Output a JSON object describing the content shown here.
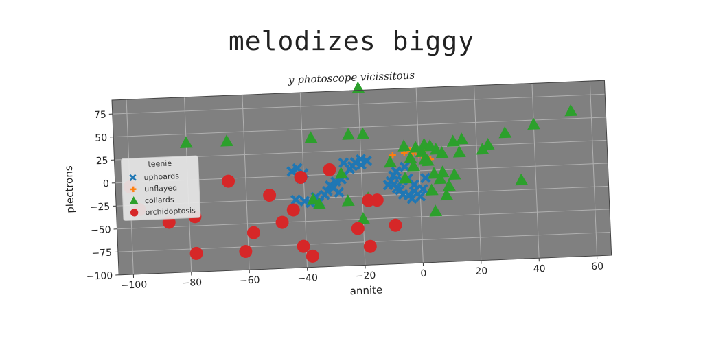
{
  "title": "melodizes biggy",
  "subtitle": "y photoscope vicissitous",
  "chart_data": {
    "type": "scatter",
    "xlabel": "annite",
    "ylabel": "plectrons",
    "xlim": [
      -105,
      65
    ],
    "ylim": [
      -100,
      90
    ],
    "xticks": [
      -100,
      -80,
      -60,
      -40,
      -20,
      0,
      20,
      40,
      60
    ],
    "yticks": [
      -100,
      -75,
      -50,
      -25,
      0,
      25,
      50,
      75
    ],
    "grid": true,
    "legend": {
      "title": "teenie",
      "position": "center-left"
    },
    "background_color": "#808080",
    "series": [
      {
        "name": "uphoards",
        "marker": "X",
        "color": "#1f77b4",
        "points": [
          [
            -44,
            5
          ],
          [
            -42,
            8
          ],
          [
            -40,
            2
          ],
          [
            -41,
            -3
          ],
          [
            -43,
            -26
          ],
          [
            -40,
            -28
          ],
          [
            -38,
            -30
          ],
          [
            -36,
            -24
          ],
          [
            -35,
            -30
          ],
          [
            -33,
            -22
          ],
          [
            -32,
            -18
          ],
          [
            -31,
            -12
          ],
          [
            -30,
            -15
          ],
          [
            -29,
            -8
          ],
          [
            -27,
            -6
          ],
          [
            -28,
            -20
          ],
          [
            -26,
            -2
          ],
          [
            -24,
            5
          ],
          [
            -23,
            8
          ],
          [
            -22,
            12
          ],
          [
            -20,
            15
          ],
          [
            -18,
            13
          ],
          [
            -20,
            9
          ],
          [
            -26,
            12
          ],
          [
            -10,
            -10
          ],
          [
            -9,
            -14
          ],
          [
            -8,
            -18
          ],
          [
            -7,
            -20
          ],
          [
            -6,
            -10
          ],
          [
            -6,
            -25
          ],
          [
            -4,
            -26
          ],
          [
            -3,
            -30
          ],
          [
            -2,
            -22
          ],
          [
            0,
            -28
          ],
          [
            1,
            -20
          ],
          [
            -2,
            -15
          ],
          [
            -4,
            -8
          ],
          [
            -5,
            5
          ],
          [
            -8,
            0
          ],
          [
            -11,
            -14
          ],
          [
            -9,
            -4
          ],
          [
            2,
            -8
          ]
        ]
      },
      {
        "name": "unflayed",
        "marker": "+",
        "color": "#ff7f0e",
        "points": [
          [
            -9,
            18
          ],
          [
            -5,
            20
          ],
          [
            -2,
            20
          ],
          [
            0,
            18
          ],
          [
            1,
            16
          ],
          [
            2,
            22
          ],
          [
            3,
            14
          ],
          [
            4,
            12
          ],
          [
            -3,
            22
          ]
        ]
      },
      {
        "name": "collards",
        "marker": "^",
        "color": "#2ca02c",
        "points": [
          [
            -80,
            40
          ],
          [
            -66,
            40
          ],
          [
            -37,
            40
          ],
          [
            -20,
            92
          ],
          [
            -24,
            42
          ],
          [
            -19,
            42
          ],
          [
            -27,
            0
          ],
          [
            -37,
            -27
          ],
          [
            -35,
            -32
          ],
          [
            -18,
            -28
          ],
          [
            -25,
            -30
          ],
          [
            -20,
            -50
          ],
          [
            -10,
            10
          ],
          [
            -5,
            27
          ],
          [
            -1,
            25
          ],
          [
            2,
            28
          ],
          [
            -3,
            14
          ],
          [
            1,
            20
          ],
          [
            4,
            26
          ],
          [
            6,
            22
          ],
          [
            8,
            18
          ],
          [
            3,
            10
          ],
          [
            5,
            -4
          ],
          [
            7,
            -10
          ],
          [
            4,
            -22
          ],
          [
            9,
            -28
          ],
          [
            10,
            -18
          ],
          [
            12,
            -6
          ],
          [
            12,
            30
          ],
          [
            14,
            18
          ],
          [
            22,
            20
          ],
          [
            24,
            25
          ],
          [
            30,
            37
          ],
          [
            35,
            -15
          ],
          [
            40,
            45
          ],
          [
            53,
            58
          ],
          [
            5,
            -45
          ],
          [
            -5,
            -8
          ],
          [
            -2,
            5
          ],
          [
            2,
            12
          ],
          [
            8,
            -3
          ],
          [
            15,
            32
          ]
        ]
      },
      {
        "name": "orchidoptosis",
        "marker": "o",
        "color": "#d62728",
        "points": [
          [
            -100,
            -5
          ],
          [
            -97,
            -30
          ],
          [
            -87,
            -45
          ],
          [
            -78,
            -40
          ],
          [
            -78,
            -80
          ],
          [
            -66,
            -3
          ],
          [
            -61,
            -80
          ],
          [
            -58,
            -60
          ],
          [
            -52,
            -20
          ],
          [
            -48,
            -50
          ],
          [
            -44,
            -37
          ],
          [
            -41,
            -2
          ],
          [
            -41,
            -77
          ],
          [
            -38,
            -88
          ],
          [
            -31,
            5
          ],
          [
            -22,
            -60
          ],
          [
            -18,
            -80
          ],
          [
            -18,
            -30
          ],
          [
            -15,
            -30
          ],
          [
            -9,
            -58
          ]
        ]
      }
    ]
  }
}
